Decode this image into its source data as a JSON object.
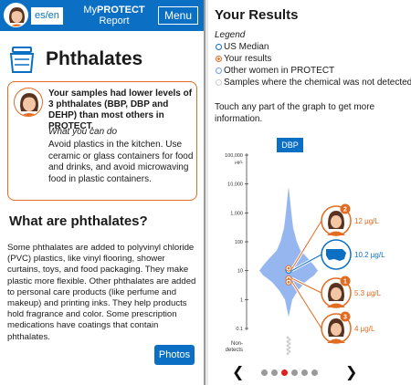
{
  "left": {
    "lang_label": "es/en",
    "app_title_prefix": "My",
    "app_title_bold": "PROTECT",
    "app_title_line2": "Report",
    "menu_label": "Menu",
    "heading": "Phthalates",
    "summary": "Your samples had lower levels of 3 phthalates (BBP, DBP and DEHP) than most others in PROTECT.",
    "cando_label": "What you can do",
    "cando_text": "Avoid plastics in the kitchen. Use ceramic or glass containers for food and drinks, and avoid microwaving food in plastic containers.",
    "section_heading": "What are phthalates?",
    "body": "Some phthalates are added to polyvinyl chloride (PVC) plastics, like vinyl flooring, shower curtains, toys, and food packaging. They make plastic more flexible. Other phthalates are added to personal care products (like perfume and makeup) and printing inks. They help products hold fragrance and color. Some prescription medications have coatings that contain phthalates.",
    "photos_label": "Photos"
  },
  "right": {
    "title": "Your Results",
    "legend_title": "Legend",
    "legend": [
      {
        "label": "US Median",
        "color": "#0b70c4"
      },
      {
        "label": "Your results",
        "color": "#e26b22"
      },
      {
        "label": "Other women in PROTECT",
        "color": "#6fa0e6"
      },
      {
        "label": "Samples where the chemical was not detected",
        "color": "#cccccc"
      }
    ],
    "hint": "Touch any part of the graph to get more information.",
    "chemical_tab": "DBP",
    "colors": {
      "accent": "#0b70c4",
      "orange": "#e26b22",
      "violin": "#8fb2ee",
      "nondetect": "#cccccc"
    }
  },
  "chart_data": {
    "type": "scatter",
    "chemical": "DBP",
    "scale": "log",
    "y_unit": "µg/L",
    "y_ticks": [
      "100,000",
      "10,000",
      "1,000",
      "100",
      "10",
      "1",
      "0.1"
    ],
    "ylim": [
      0.1,
      100000
    ],
    "non_detect_label": "Non-detects",
    "us_median": {
      "value": 10.2,
      "label": "10.2 µg/L"
    },
    "samples": [
      {
        "id": "2",
        "value": 12,
        "label": "12 µg/L"
      },
      {
        "id": "1",
        "value": 5.3,
        "label": "5.3 µg/L"
      },
      {
        "id": "3",
        "value": 4,
        "label": "4 µg/L"
      }
    ]
  },
  "pager": {
    "count": 6,
    "active": 3
  }
}
